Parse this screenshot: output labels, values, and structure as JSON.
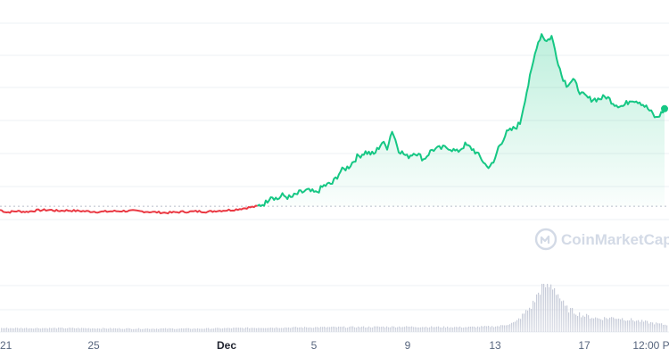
{
  "chart_data": {
    "type": "line",
    "title": "",
    "xlabel": "",
    "ylabel": "",
    "x_tick_labels": [
      "21",
      "25",
      "Dec",
      "5",
      "9",
      "13",
      "17",
      "12:00 P"
    ],
    "bold_tick": "Dec",
    "reference_value": 0.255,
    "ylim": [
      0,
      1
    ],
    "grid": "horizontal",
    "watermark": "CoinMarketCap",
    "colors": {
      "below_reference": "#ea3943",
      "above_reference": "#16c784",
      "volume": "#c3c8d6",
      "grid": "#eef0f4"
    },
    "series": [
      {
        "values": [
          {
            "x": 0,
            "y": 0.24
          },
          {
            "x": 0.4,
            "y": 0.23
          },
          {
            "x": 1,
            "y": 0.235
          },
          {
            "x": 1.6,
            "y": 0.232
          },
          {
            "x": 2.2,
            "y": 0.238
          },
          {
            "x": 3,
            "y": 0.24
          },
          {
            "x": 3.5,
            "y": 0.236
          },
          {
            "x": 4,
            "y": 0.238
          },
          {
            "x": 5,
            "y": 0.235
          },
          {
            "x": 6,
            "y": 0.232
          },
          {
            "x": 7,
            "y": 0.235
          },
          {
            "x": 8,
            "y": 0.236
          },
          {
            "x": 9,
            "y": 0.232
          },
          {
            "x": 10,
            "y": 0.228
          },
          {
            "x": 11,
            "y": 0.232
          },
          {
            "x": 12,
            "y": 0.234
          },
          {
            "x": 12.5,
            "y": 0.232
          },
          {
            "x": 13,
            "y": 0.236
          },
          {
            "x": 14,
            "y": 0.24
          },
          {
            "x": 15.5,
            "y": 0.255
          },
          {
            "x": 16,
            "y": 0.27
          },
          {
            "x": 16.3,
            "y": 0.3
          },
          {
            "x": 16.7,
            "y": 0.285
          },
          {
            "x": 17,
            "y": 0.3
          },
          {
            "x": 17.5,
            "y": 0.29
          },
          {
            "x": 18,
            "y": 0.31
          },
          {
            "x": 18.5,
            "y": 0.32
          },
          {
            "x": 19,
            "y": 0.31
          },
          {
            "x": 19.5,
            "y": 0.34
          },
          {
            "x": 20,
            "y": 0.35
          },
          {
            "x": 20.5,
            "y": 0.4
          },
          {
            "x": 21,
            "y": 0.42
          },
          {
            "x": 21.5,
            "y": 0.46
          },
          {
            "x": 22,
            "y": 0.48
          },
          {
            "x": 22.5,
            "y": 0.47
          },
          {
            "x": 23,
            "y": 0.52
          },
          {
            "x": 23.3,
            "y": 0.5
          },
          {
            "x": 23.6,
            "y": 0.57
          },
          {
            "x": 24,
            "y": 0.49
          },
          {
            "x": 24.5,
            "y": 0.46
          },
          {
            "x": 25,
            "y": 0.48
          },
          {
            "x": 25.5,
            "y": 0.45
          },
          {
            "x": 26,
            "y": 0.49
          },
          {
            "x": 27,
            "y": 0.5
          },
          {
            "x": 27.5,
            "y": 0.48
          },
          {
            "x": 28,
            "y": 0.51
          },
          {
            "x": 28.5,
            "y": 0.49
          },
          {
            "x": 29,
            "y": 0.45
          },
          {
            "x": 29.3,
            "y": 0.42
          },
          {
            "x": 29.7,
            "y": 0.43
          },
          {
            "x": 30,
            "y": 0.5
          },
          {
            "x": 30.5,
            "y": 0.56
          },
          {
            "x": 31,
            "y": 0.58
          },
          {
            "x": 31.3,
            "y": 0.6
          },
          {
            "x": 31.6,
            "y": 0.7
          },
          {
            "x": 32,
            "y": 0.82
          },
          {
            "x": 32.3,
            "y": 0.92
          },
          {
            "x": 32.6,
            "y": 0.97
          },
          {
            "x": 32.9,
            "y": 0.94
          },
          {
            "x": 33.2,
            "y": 0.96
          },
          {
            "x": 33.5,
            "y": 0.88
          },
          {
            "x": 33.8,
            "y": 0.8
          },
          {
            "x": 34.1,
            "y": 0.76
          },
          {
            "x": 34.5,
            "y": 0.78
          },
          {
            "x": 35,
            "y": 0.72
          },
          {
            "x": 35.5,
            "y": 0.7
          },
          {
            "x": 36,
            "y": 0.7
          },
          {
            "x": 36.5,
            "y": 0.71
          },
          {
            "x": 37,
            "y": 0.68
          },
          {
            "x": 37.5,
            "y": 0.67
          },
          {
            "x": 38,
            "y": 0.7
          },
          {
            "x": 38.5,
            "y": 0.69
          },
          {
            "x": 39,
            "y": 0.66
          },
          {
            "x": 39.5,
            "y": 0.62
          },
          {
            "x": 39.8,
            "y": 0.64
          },
          {
            "x": 40,
            "y": 0.66
          }
        ]
      }
    ],
    "volume": [
      {
        "x": 0,
        "v": 0.08
      },
      {
        "x": 4,
        "v": 0.08
      },
      {
        "x": 8,
        "v": 0.07
      },
      {
        "x": 12,
        "v": 0.07
      },
      {
        "x": 16,
        "v": 0.09
      },
      {
        "x": 20,
        "v": 0.1
      },
      {
        "x": 24,
        "v": 0.11
      },
      {
        "x": 28,
        "v": 0.1
      },
      {
        "x": 30,
        "v": 0.12
      },
      {
        "x": 31,
        "v": 0.2
      },
      {
        "x": 32,
        "v": 0.55
      },
      {
        "x": 32.6,
        "v": 0.96
      },
      {
        "x": 33.3,
        "v": 0.95
      },
      {
        "x": 34,
        "v": 0.5
      },
      {
        "x": 35,
        "v": 0.35
      },
      {
        "x": 36,
        "v": 0.28
      },
      {
        "x": 37,
        "v": 0.3
      },
      {
        "x": 38,
        "v": 0.25
      },
      {
        "x": 39,
        "v": 0.2
      },
      {
        "x": 40,
        "v": 0.15
      }
    ]
  }
}
